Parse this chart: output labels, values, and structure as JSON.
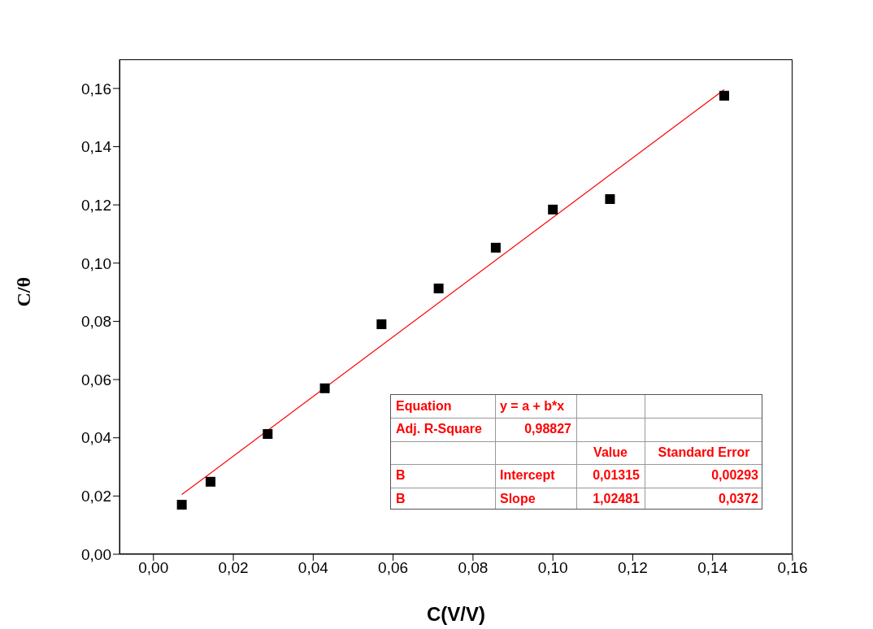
{
  "chart_data": {
    "type": "scatter",
    "xlabel": "C(V/V)",
    "ylabel": "C/θ",
    "xlim": [
      -0.0085,
      0.16
    ],
    "ylim": [
      0,
      0.17
    ],
    "xticks": [
      {
        "value": 0,
        "label": "0,00"
      },
      {
        "value": 0.02,
        "label": "0,02"
      },
      {
        "value": 0.04,
        "label": "0,04"
      },
      {
        "value": 0.06,
        "label": "0,06"
      },
      {
        "value": 0.08,
        "label": "0,08"
      },
      {
        "value": 0.1,
        "label": "0,10"
      },
      {
        "value": 0.12,
        "label": "0,12"
      },
      {
        "value": 0.14,
        "label": "0,14"
      },
      {
        "value": 0.16,
        "label": "0,16"
      }
    ],
    "yticks": [
      {
        "value": 0,
        "label": "0,00"
      },
      {
        "value": 0.02,
        "label": "0,02"
      },
      {
        "value": 0.04,
        "label": "0,04"
      },
      {
        "value": 0.06,
        "label": "0,06"
      },
      {
        "value": 0.08,
        "label": "0,08"
      },
      {
        "value": 0.1,
        "label": "0,10"
      },
      {
        "value": 0.12,
        "label": "0,12"
      },
      {
        "value": 0.14,
        "label": "0,14"
      },
      {
        "value": 0.16,
        "label": "0,16"
      }
    ],
    "series": [
      {
        "color": "#000000",
        "marker": "square",
        "x": [
          0.0071,
          0.0143,
          0.0286,
          0.0429,
          0.0571,
          0.0714,
          0.0857,
          0.1,
          0.1143,
          0.1429
        ],
        "values": [
          0.017,
          0.0249,
          0.0413,
          0.057,
          0.079,
          0.0913,
          0.1053,
          0.1184,
          0.122,
          0.1575
        ]
      },
      {
        "type": "line",
        "color": "#ff0000",
        "marker": "none",
        "x": [
          0.0071,
          0.1429
        ],
        "values": [
          0.0205,
          0.1596
        ]
      }
    ],
    "annotations": [
      "Equation",
      "y = a + b*x",
      "Adj. R-Square",
      "0,98827",
      "Value",
      "Standard Error",
      "B",
      "Intercept",
      "0,01315",
      "0,00293",
      "B",
      "Slope",
      "1,02481",
      "0,0372"
    ]
  }
}
